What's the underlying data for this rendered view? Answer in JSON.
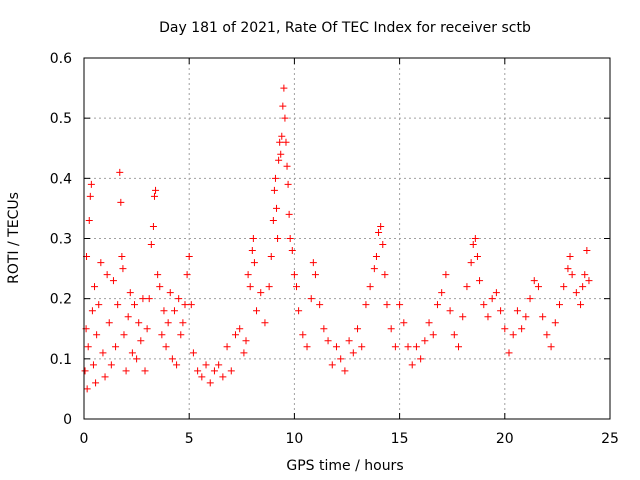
{
  "chart_data": {
    "type": "scatter",
    "title": "Day 181 of 2021, Rate Of TEC Index for receiver sctb",
    "xlabel": "GPS time / hours",
    "ylabel": "ROTI / TECUs",
    "xlim": [
      0,
      25
    ],
    "ylim": [
      0,
      0.6
    ],
    "x_ticks": [
      0,
      5,
      10,
      15,
      20,
      25
    ],
    "y_ticks": [
      0,
      0.1,
      0.2,
      0.3,
      0.4,
      0.5,
      0.6
    ],
    "x_tick_labels": [
      "0",
      "5",
      "10",
      "15",
      "20",
      "25"
    ],
    "y_tick_labels": [
      "0",
      "0.1",
      "0.2",
      "0.3",
      "0.4",
      "0.5",
      "0.6"
    ],
    "grid": true,
    "marker": "+",
    "marker_color": "#ff0000",
    "series": [
      {
        "points": [
          [
            0.05,
            0.08
          ],
          [
            0.1,
            0.15
          ],
          [
            0.12,
            0.27
          ],
          [
            0.15,
            0.05
          ],
          [
            0.2,
            0.12
          ],
          [
            0.25,
            0.33
          ],
          [
            0.3,
            0.37
          ],
          [
            0.35,
            0.39
          ],
          [
            0.4,
            0.18
          ],
          [
            0.45,
            0.09
          ],
          [
            0.5,
            0.22
          ],
          [
            0.55,
            0.06
          ],
          [
            0.6,
            0.14
          ],
          [
            0.7,
            0.19
          ],
          [
            0.8,
            0.26
          ],
          [
            0.9,
            0.11
          ],
          [
            1.0,
            0.07
          ],
          [
            1.1,
            0.24
          ],
          [
            1.2,
            0.16
          ],
          [
            1.3,
            0.09
          ],
          [
            1.4,
            0.23
          ],
          [
            1.5,
            0.12
          ],
          [
            1.6,
            0.19
          ],
          [
            1.7,
            0.41
          ],
          [
            1.75,
            0.36
          ],
          [
            1.8,
            0.27
          ],
          [
            1.85,
            0.25
          ],
          [
            1.9,
            0.14
          ],
          [
            2.0,
            0.08
          ],
          [
            2.1,
            0.17
          ],
          [
            2.2,
            0.21
          ],
          [
            2.3,
            0.11
          ],
          [
            2.4,
            0.19
          ],
          [
            2.5,
            0.1
          ],
          [
            2.6,
            0.16
          ],
          [
            2.7,
            0.13
          ],
          [
            2.8,
            0.2
          ],
          [
            2.9,
            0.08
          ],
          [
            3.0,
            0.15
          ],
          [
            3.1,
            0.2
          ],
          [
            3.2,
            0.29
          ],
          [
            3.3,
            0.32
          ],
          [
            3.35,
            0.37
          ],
          [
            3.4,
            0.38
          ],
          [
            3.5,
            0.24
          ],
          [
            3.6,
            0.22
          ],
          [
            3.7,
            0.14
          ],
          [
            3.8,
            0.18
          ],
          [
            3.9,
            0.12
          ],
          [
            4.0,
            0.16
          ],
          [
            4.1,
            0.21
          ],
          [
            4.2,
            0.1
          ],
          [
            4.3,
            0.18
          ],
          [
            4.4,
            0.09
          ],
          [
            4.5,
            0.2
          ],
          [
            4.6,
            0.14
          ],
          [
            4.7,
            0.16
          ],
          [
            4.8,
            0.19
          ],
          [
            4.9,
            0.24
          ],
          [
            5.0,
            0.27
          ],
          [
            5.1,
            0.19
          ],
          [
            5.2,
            0.11
          ],
          [
            5.4,
            0.08
          ],
          [
            5.6,
            0.07
          ],
          [
            5.8,
            0.09
          ],
          [
            6.0,
            0.06
          ],
          [
            6.2,
            0.08
          ],
          [
            6.4,
            0.09
          ],
          [
            6.6,
            0.07
          ],
          [
            6.8,
            0.12
          ],
          [
            7.0,
            0.08
          ],
          [
            7.2,
            0.14
          ],
          [
            7.4,
            0.15
          ],
          [
            7.6,
            0.11
          ],
          [
            7.7,
            0.13
          ],
          [
            7.8,
            0.24
          ],
          [
            7.9,
            0.22
          ],
          [
            8.0,
            0.28
          ],
          [
            8.05,
            0.3
          ],
          [
            8.1,
            0.26
          ],
          [
            8.2,
            0.18
          ],
          [
            8.4,
            0.21
          ],
          [
            8.6,
            0.16
          ],
          [
            8.8,
            0.22
          ],
          [
            8.9,
            0.27
          ],
          [
            9.0,
            0.33
          ],
          [
            9.05,
            0.38
          ],
          [
            9.1,
            0.4
          ],
          [
            9.15,
            0.35
          ],
          [
            9.2,
            0.3
          ],
          [
            9.25,
            0.43
          ],
          [
            9.3,
            0.46
          ],
          [
            9.35,
            0.44
          ],
          [
            9.4,
            0.47
          ],
          [
            9.45,
            0.52
          ],
          [
            9.5,
            0.55
          ],
          [
            9.55,
            0.5
          ],
          [
            9.6,
            0.46
          ],
          [
            9.65,
            0.42
          ],
          [
            9.7,
            0.39
          ],
          [
            9.75,
            0.34
          ],
          [
            9.8,
            0.3
          ],
          [
            9.9,
            0.28
          ],
          [
            10.0,
            0.24
          ],
          [
            10.1,
            0.22
          ],
          [
            10.2,
            0.18
          ],
          [
            10.4,
            0.14
          ],
          [
            10.6,
            0.12
          ],
          [
            10.8,
            0.2
          ],
          [
            10.9,
            0.26
          ],
          [
            11.0,
            0.24
          ],
          [
            11.2,
            0.19
          ],
          [
            11.4,
            0.15
          ],
          [
            11.6,
            0.13
          ],
          [
            11.8,
            0.09
          ],
          [
            12.0,
            0.12
          ],
          [
            12.2,
            0.1
          ],
          [
            12.4,
            0.08
          ],
          [
            12.6,
            0.13
          ],
          [
            12.8,
            0.11
          ],
          [
            13.0,
            0.15
          ],
          [
            13.2,
            0.12
          ],
          [
            13.4,
            0.19
          ],
          [
            13.6,
            0.22
          ],
          [
            13.8,
            0.25
          ],
          [
            13.9,
            0.27
          ],
          [
            14.0,
            0.31
          ],
          [
            14.1,
            0.32
          ],
          [
            14.2,
            0.29
          ],
          [
            14.3,
            0.24
          ],
          [
            14.4,
            0.19
          ],
          [
            14.6,
            0.15
          ],
          [
            14.8,
            0.12
          ],
          [
            15.0,
            0.19
          ],
          [
            15.2,
            0.16
          ],
          [
            15.4,
            0.12
          ],
          [
            15.6,
            0.09
          ],
          [
            15.8,
            0.12
          ],
          [
            16.0,
            0.1
          ],
          [
            16.2,
            0.13
          ],
          [
            16.4,
            0.16
          ],
          [
            16.6,
            0.14
          ],
          [
            16.8,
            0.19
          ],
          [
            17.0,
            0.21
          ],
          [
            17.2,
            0.24
          ],
          [
            17.4,
            0.18
          ],
          [
            17.6,
            0.14
          ],
          [
            17.8,
            0.12
          ],
          [
            18.0,
            0.17
          ],
          [
            18.2,
            0.22
          ],
          [
            18.4,
            0.26
          ],
          [
            18.5,
            0.29
          ],
          [
            18.6,
            0.3
          ],
          [
            18.7,
            0.27
          ],
          [
            18.8,
            0.23
          ],
          [
            19.0,
            0.19
          ],
          [
            19.2,
            0.17
          ],
          [
            19.4,
            0.2
          ],
          [
            19.6,
            0.21
          ],
          [
            19.8,
            0.18
          ],
          [
            20.0,
            0.15
          ],
          [
            20.2,
            0.11
          ],
          [
            20.4,
            0.14
          ],
          [
            20.6,
            0.18
          ],
          [
            20.8,
            0.15
          ],
          [
            21.0,
            0.17
          ],
          [
            21.2,
            0.2
          ],
          [
            21.4,
            0.23
          ],
          [
            21.6,
            0.22
          ],
          [
            21.8,
            0.17
          ],
          [
            22.0,
            0.14
          ],
          [
            22.2,
            0.12
          ],
          [
            22.4,
            0.16
          ],
          [
            22.6,
            0.19
          ],
          [
            22.8,
            0.22
          ],
          [
            23.0,
            0.25
          ],
          [
            23.1,
            0.27
          ],
          [
            23.2,
            0.24
          ],
          [
            23.4,
            0.21
          ],
          [
            23.6,
            0.19
          ],
          [
            23.7,
            0.22
          ],
          [
            23.8,
            0.24
          ],
          [
            23.9,
            0.28
          ],
          [
            24.0,
            0.23
          ]
        ]
      }
    ]
  }
}
